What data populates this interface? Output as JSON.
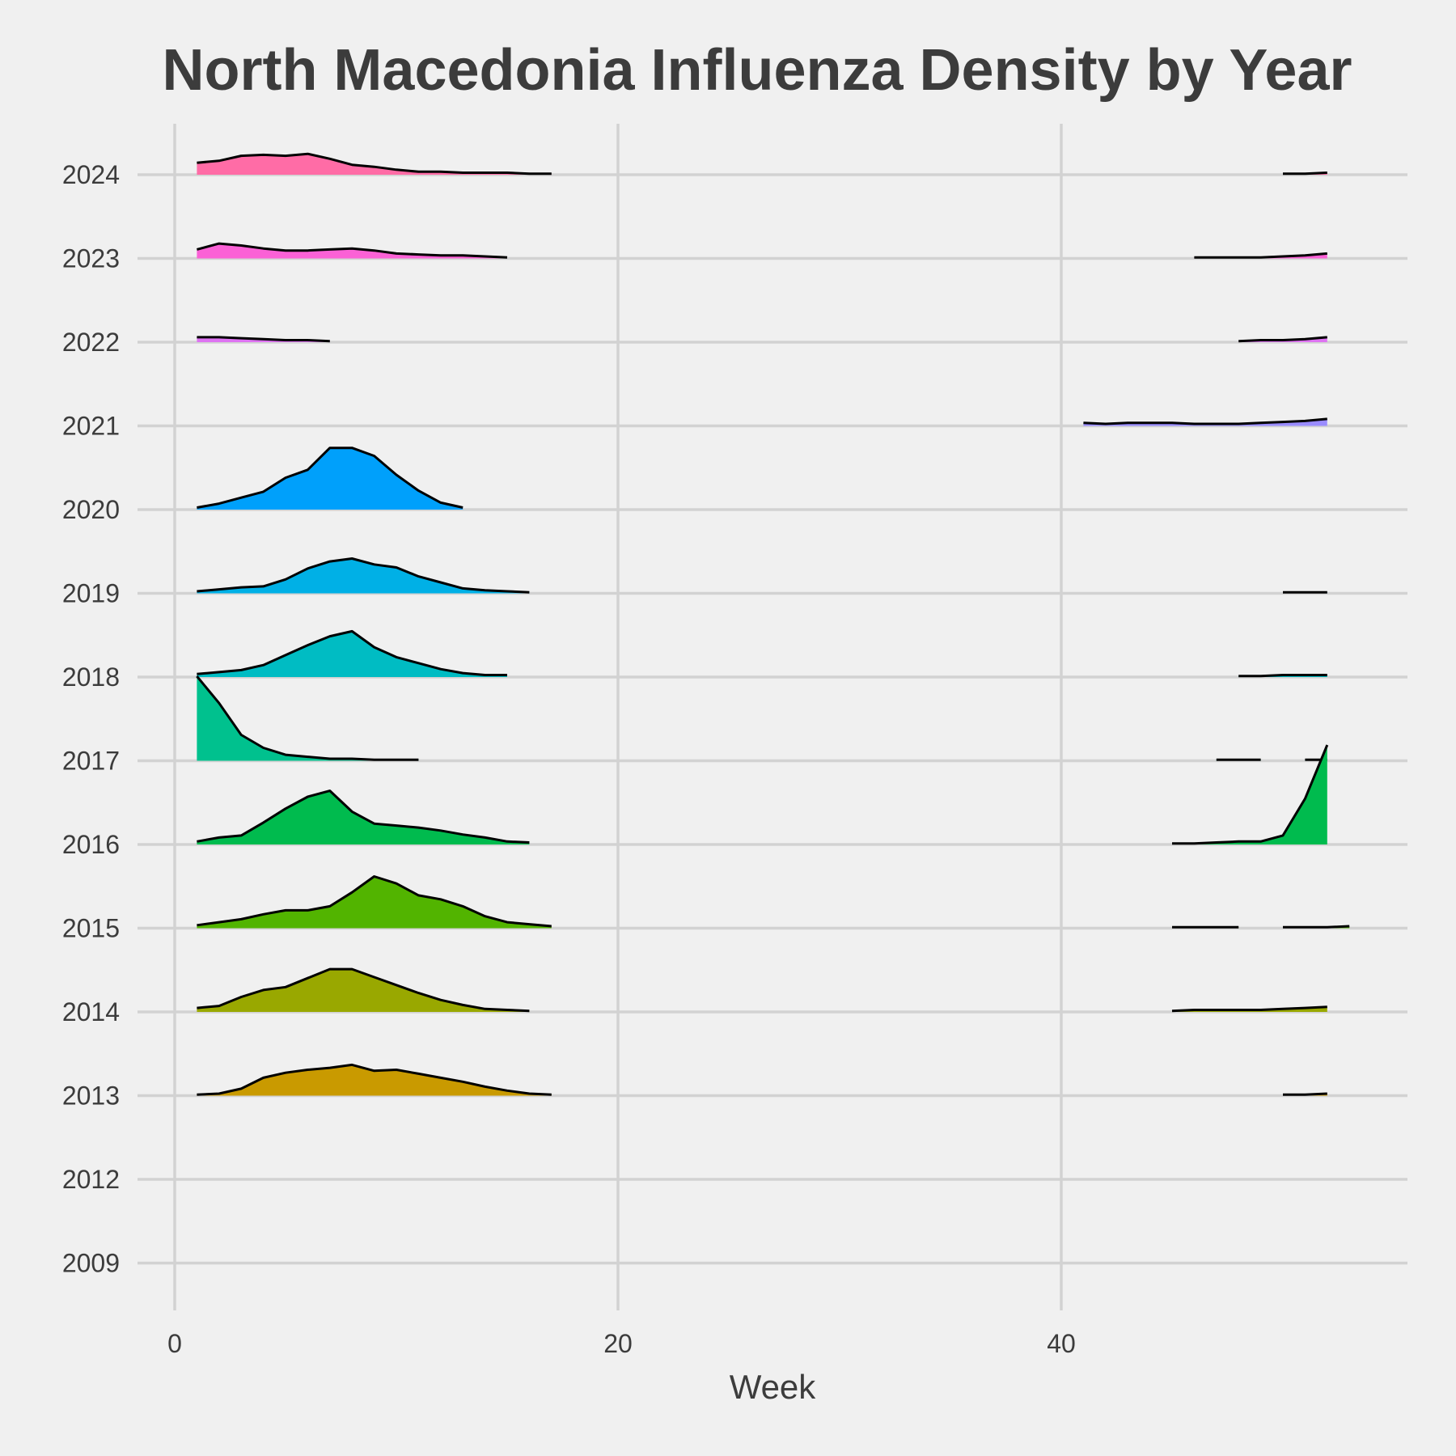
{
  "chart_data": {
    "type": "ridgeline",
    "title": "North Macedonia Influenza Density by Year",
    "xlabel": "Week",
    "ylabel": "",
    "xlim": [
      0,
      55
    ],
    "x_ticks": [
      0,
      20,
      40
    ],
    "x_tick_labels": [
      "0",
      "20",
      "40"
    ],
    "categories": [
      "2009",
      "2012",
      "2013",
      "2014",
      "2015",
      "2016",
      "2017",
      "2018",
      "2019",
      "2020",
      "2021",
      "2022",
      "2023",
      "2024"
    ],
    "grid": true,
    "legend": "none",
    "series": [
      {
        "year": "2009",
        "color": "#e6e6e6",
        "segments": []
      },
      {
        "year": "2012",
        "color": "#e6e6e6",
        "segments": []
      },
      {
        "year": "2013",
        "color": "#c99a00",
        "segments": [
          {
            "x": [
              1,
              2,
              3,
              4,
              5,
              6,
              7,
              8,
              9,
              10,
              11,
              12,
              13,
              14,
              15,
              16,
              17
            ],
            "y": [
              0.01,
              0.02,
              0.07,
              0.18,
              0.23,
              0.26,
              0.28,
              0.31,
              0.25,
              0.26,
              0.22,
              0.18,
              0.14,
              0.09,
              0.05,
              0.02,
              0.01
            ]
          },
          {
            "x": [
              50,
              51,
              52
            ],
            "y": [
              0.01,
              0.01,
              0.02
            ]
          }
        ]
      },
      {
        "year": "2014",
        "color": "#99a800",
        "segments": [
          {
            "x": [
              1,
              2,
              3,
              4,
              5,
              6,
              7,
              8,
              9,
              10,
              11,
              12,
              13,
              14,
              15,
              16
            ],
            "y": [
              0.04,
              0.06,
              0.15,
              0.22,
              0.25,
              0.34,
              0.43,
              0.43,
              0.35,
              0.27,
              0.19,
              0.12,
              0.07,
              0.03,
              0.02,
              0.01
            ]
          },
          {
            "x": [
              45,
              46,
              47,
              48,
              49,
              50,
              51,
              52
            ],
            "y": [
              0.01,
              0.02,
              0.02,
              0.02,
              0.02,
              0.03,
              0.04,
              0.05
            ]
          }
        ]
      },
      {
        "year": "2015",
        "color": "#52b400",
        "segments": [
          {
            "x": [
              1,
              2,
              3,
              4,
              5,
              6,
              7,
              8,
              9,
              10,
              11,
              12,
              13,
              14,
              15,
              16,
              17
            ],
            "y": [
              0.03,
              0.06,
              0.09,
              0.14,
              0.18,
              0.18,
              0.22,
              0.36,
              0.52,
              0.45,
              0.33,
              0.29,
              0.22,
              0.12,
              0.06,
              0.04,
              0.02
            ]
          },
          {
            "x": [
              45,
              46,
              47,
              48
            ],
            "y": [
              0.01,
              0.01,
              0.01,
              0.01
            ]
          },
          {
            "x": [
              50,
              51,
              52,
              53
            ],
            "y": [
              0.01,
              0.01,
              0.01,
              0.02
            ]
          }
        ]
      },
      {
        "year": "2016",
        "color": "#00bb4e",
        "segments": [
          {
            "x": [
              1,
              2,
              3,
              4,
              5,
              6,
              7,
              8,
              9,
              10,
              11,
              12,
              13,
              14,
              15,
              16
            ],
            "y": [
              0.03,
              0.07,
              0.09,
              0.22,
              0.36,
              0.48,
              0.54,
              0.33,
              0.21,
              0.19,
              0.17,
              0.14,
              0.1,
              0.07,
              0.03,
              0.02
            ]
          },
          {
            "x": [
              45,
              46,
              47,
              48,
              49,
              50,
              51,
              52
            ],
            "y": [
              0.01,
              0.01,
              0.02,
              0.03,
              0.03,
              0.09,
              0.46,
              1.0
            ]
          }
        ]
      },
      {
        "year": "2017",
        "color": "#00c18e",
        "segments": [
          {
            "x": [
              1,
              2,
              3,
              4,
              5,
              6,
              7,
              8,
              9,
              10,
              11
            ],
            "y": [
              0.85,
              0.58,
              0.26,
              0.13,
              0.06,
              0.04,
              0.02,
              0.02,
              0.01,
              0.01,
              0.01
            ]
          },
          {
            "x": [
              47,
              48,
              49
            ],
            "y": [
              0.01,
              0.01,
              0.01
            ]
          },
          {
            "x": [
              51,
              52
            ],
            "y": [
              0.01,
              0.01
            ]
          }
        ]
      },
      {
        "year": "2018",
        "color": "#00bcc3",
        "segments": [
          {
            "x": [
              1,
              2,
              3,
              4,
              5,
              6,
              7,
              8,
              9,
              10,
              11,
              12,
              13,
              14,
              15
            ],
            "y": [
              0.03,
              0.05,
              0.07,
              0.12,
              0.22,
              0.32,
              0.41,
              0.46,
              0.3,
              0.2,
              0.14,
              0.08,
              0.04,
              0.02,
              0.02
            ]
          },
          {
            "x": [
              48,
              49,
              50,
              51,
              52
            ],
            "y": [
              0.01,
              0.01,
              0.02,
              0.02,
              0.02
            ]
          }
        ]
      },
      {
        "year": "2019",
        "color": "#00b0e6",
        "segments": [
          {
            "x": [
              1,
              2,
              3,
              4,
              5,
              6,
              7,
              8,
              9,
              10,
              11,
              12,
              13,
              14,
              15,
              16
            ],
            "y": [
              0.02,
              0.04,
              0.06,
              0.07,
              0.14,
              0.25,
              0.32,
              0.35,
              0.29,
              0.26,
              0.17,
              0.11,
              0.05,
              0.03,
              0.02,
              0.01
            ]
          },
          {
            "x": [
              50,
              51,
              52
            ],
            "y": [
              0.01,
              0.01,
              0.01
            ]
          }
        ]
      },
      {
        "year": "2020",
        "color": "#00a0fb",
        "segments": [
          {
            "x": [
              1,
              2,
              3,
              4,
              5,
              6,
              7,
              8,
              9,
              10,
              11,
              12,
              13
            ],
            "y": [
              0.02,
              0.06,
              0.12,
              0.18,
              0.32,
              0.4,
              0.62,
              0.62,
              0.54,
              0.35,
              0.19,
              0.07,
              0.02
            ]
          }
        ]
      },
      {
        "year": "2021",
        "color": "#9a8cff",
        "segments": [
          {
            "x": [
              41,
              42,
              43,
              44,
              45,
              46,
              47,
              48,
              49,
              50,
              51,
              52
            ],
            "y": [
              0.03,
              0.02,
              0.03,
              0.03,
              0.03,
              0.02,
              0.02,
              0.02,
              0.03,
              0.04,
              0.05,
              0.07
            ]
          }
        ]
      },
      {
        "year": "2022",
        "color": "#de74f2",
        "segments": [
          {
            "x": [
              1,
              2,
              3,
              4,
              5,
              6,
              7
            ],
            "y": [
              0.05,
              0.05,
              0.04,
              0.03,
              0.02,
              0.02,
              0.01
            ]
          },
          {
            "x": [
              48,
              49,
              50,
              51,
              52
            ],
            "y": [
              0.01,
              0.02,
              0.02,
              0.03,
              0.05
            ]
          }
        ]
      },
      {
        "year": "2023",
        "color": "#fb61d6",
        "segments": [
          {
            "x": [
              1,
              2,
              3,
              4,
              5,
              6,
              7,
              8,
              9,
              10,
              11,
              12,
              13,
              14,
              15
            ],
            "y": [
              0.09,
              0.15,
              0.13,
              0.1,
              0.08,
              0.08,
              0.09,
              0.1,
              0.08,
              0.05,
              0.04,
              0.03,
              0.03,
              0.02,
              0.01
            ]
          },
          {
            "x": [
              46,
              47,
              48,
              49,
              50,
              51,
              52
            ],
            "y": [
              0.01,
              0.01,
              0.01,
              0.01,
              0.02,
              0.03,
              0.05
            ]
          }
        ]
      },
      {
        "year": "2024",
        "color": "#ff6ca6",
        "segments": [
          {
            "x": [
              1,
              2,
              3,
              4,
              5,
              6,
              7,
              8,
              9,
              10,
              11,
              12,
              13,
              14,
              15,
              16,
              17
            ],
            "y": [
              0.12,
              0.14,
              0.19,
              0.2,
              0.19,
              0.21,
              0.16,
              0.1,
              0.08,
              0.05,
              0.03,
              0.03,
              0.02,
              0.02,
              0.02,
              0.01,
              0.01
            ]
          },
          {
            "x": [
              50,
              51,
              52
            ],
            "y": [
              0.01,
              0.01,
              0.02
            ]
          }
        ]
      }
    ]
  }
}
